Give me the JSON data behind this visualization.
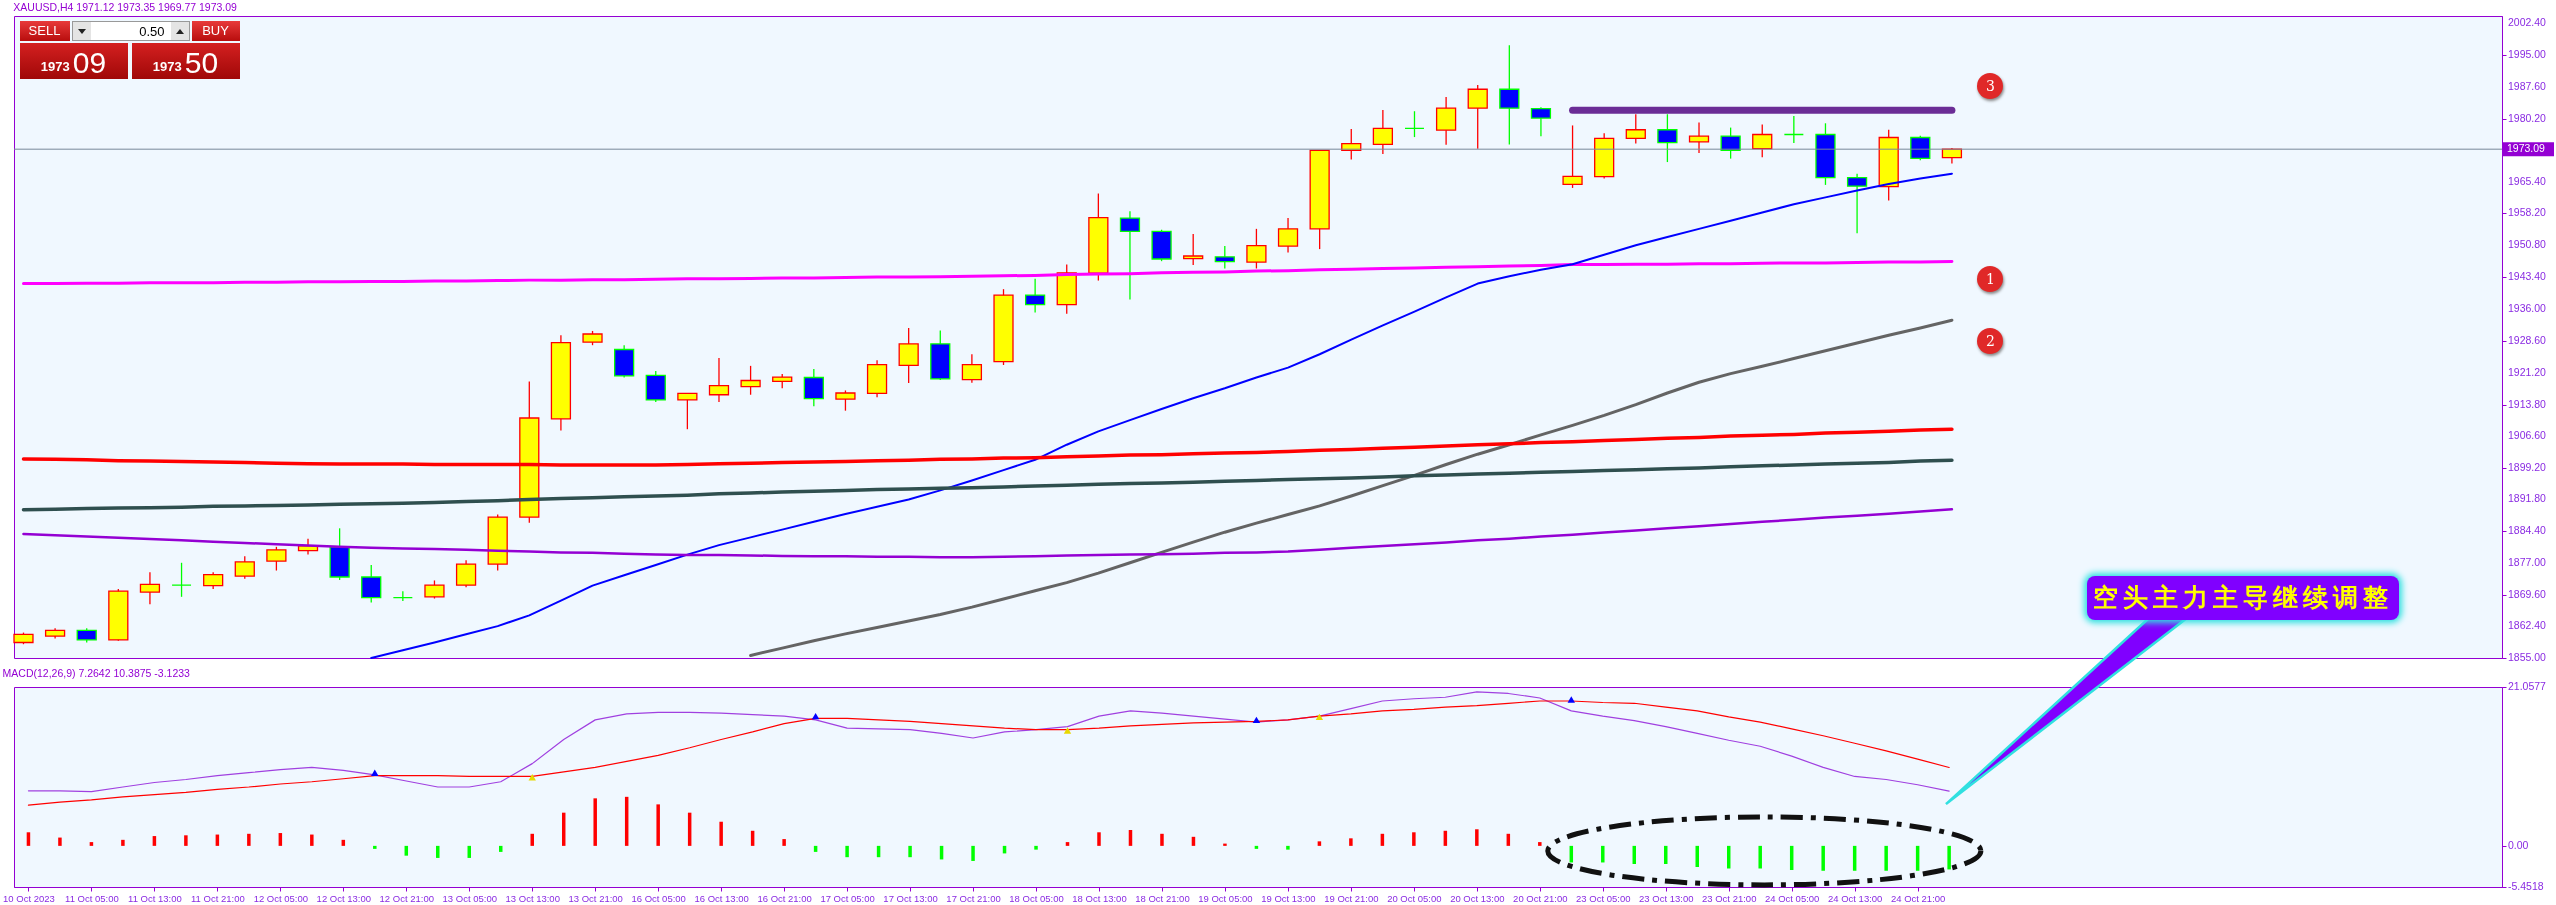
{
  "chart_data": [
    {
      "type": "candlestick",
      "title": "XAUUSD,H4  1971.12 1973.35 1969.77 1973.09",
      "categories": [
        null,
        null,
        null,
        null,
        null,
        null,
        null,
        null,
        null,
        null,
        null,
        null,
        null,
        null,
        null,
        null,
        null,
        null,
        null,
        null,
        null,
        null,
        null,
        null,
        null,
        null,
        null,
        null,
        null,
        null,
        null,
        null,
        null,
        null,
        null,
        null,
        null,
        null,
        null,
        null,
        null,
        null,
        null,
        null,
        null,
        null,
        null,
        null,
        null,
        null,
        null,
        null,
        null,
        null,
        null,
        null,
        null,
        null,
        null,
        null,
        null,
        null
      ],
      "ohlc": [
        [
          1858.6,
          1860.9,
          1858.2,
          1860.5
        ],
        [
          1860.1,
          1861.9,
          1859.5,
          1861.4
        ],
        [
          1861.4,
          1861.9,
          1858.6,
          1859.2
        ],
        [
          1859.2,
          1871.0,
          1859.0,
          1870.5
        ],
        [
          1870.3,
          1874.9,
          1867.5,
          1872.1
        ],
        [
          1871.9,
          1877.1,
          1869.2,
          1871.9
        ],
        [
          1871.8,
          1874.9,
          1871.0,
          1874.35
        ],
        [
          1874.0,
          1878.6,
          1873.4,
          1877.3
        ],
        [
          1877.5,
          1880.8,
          1875.3,
          1880.1
        ],
        [
          1879.9,
          1882.7,
          1879.0,
          1881.0
        ],
        [
          1880.8,
          1885.1,
          1873.1,
          1873.8
        ],
        [
          1873.8,
          1876.6,
          1867.9,
          1869.0
        ],
        [
          1869.0,
          1870.5,
          1868.2,
          1869.0
        ],
        [
          1869.2,
          1873.0,
          1868.8,
          1871.9
        ],
        [
          1871.9,
          1877.7,
          1871.4,
          1876.8
        ],
        [
          1876.8,
          1888.3,
          1875.3,
          1887.7
        ],
        [
          1887.7,
          1919.2,
          1886.4,
          1910.7
        ],
        [
          1910.5,
          1929.9,
          1907.8,
          1928.2
        ],
        [
          1928.3,
          1930.9,
          1927.6,
          1930.2
        ],
        [
          1926.6,
          1927.6,
          1920.1,
          1920.5
        ],
        [
          1920.6,
          1921.6,
          1914.4,
          1914.9
        ],
        [
          1914.9,
          1916.5,
          1908.1,
          1916.4
        ],
        [
          1916.1,
          1924.6,
          1914.4,
          1918.2
        ],
        [
          1918.0,
          1922.8,
          1916.1,
          1919.4
        ],
        [
          1919.2,
          1920.9,
          1917.6,
          1920.2
        ],
        [
          1920.1,
          1922.1,
          1913.4,
          1915.2
        ],
        [
          1915.1,
          1917.1,
          1912.4,
          1916.5
        ],
        [
          1916.4,
          1924.1,
          1915.5,
          1923.1
        ],
        [
          1922.9,
          1931.6,
          1918.8,
          1927.9
        ],
        [
          1927.9,
          1931.0,
          1919.5,
          1919.8
        ],
        [
          1919.6,
          1925.5,
          1918.9,
          1923.1
        ],
        [
          1923.8,
          1940.6,
          1923.0,
          1939.2
        ],
        [
          1939.2,
          1943.0,
          1935.2,
          1937.0
        ],
        [
          1937.0,
          1946.3,
          1934.9,
          1944.4
        ],
        [
          1944.3,
          1962.8,
          1942.6,
          1957.2
        ],
        [
          1957.1,
          1958.7,
          1938.2,
          1954.0
        ],
        [
          1954.0,
          1954.4,
          1947.1,
          1947.6
        ],
        [
          1947.7,
          1953.4,
          1946.2,
          1948.3
        ],
        [
          1948.1,
          1950.6,
          1945.4,
          1947.0
        ],
        [
          1946.9,
          1954.6,
          1945.4,
          1950.7
        ],
        [
          1950.6,
          1957.1,
          1949.1,
          1954.6
        ],
        [
          1954.6,
          1972.9,
          1949.9,
          1972.8
        ],
        [
          1972.8,
          1977.8,
          1970.7,
          1974.4
        ],
        [
          1974.2,
          1982.2,
          1972.0,
          1977.9
        ],
        [
          1977.9,
          1981.9,
          1975.9,
          1977.9
        ],
        [
          1977.5,
          1985.2,
          1974.1,
          1982.6
        ],
        [
          1982.6,
          1988.0,
          1973.2,
          1987.0
        ],
        [
          1987.0,
          1997.2,
          1974.2,
          1982.6
        ],
        [
          1982.5,
          1982.8,
          1976.1,
          1980.3
        ],
        [
          1964.9,
          1978.6,
          1964.1,
          1966.8
        ],
        [
          1966.7,
          1976.8,
          1966.3,
          1975.6
        ],
        [
          1975.6,
          1981.2,
          1974.4,
          1977.6
        ],
        [
          1977.6,
          1981.2,
          1970.1,
          1974.6
        ],
        [
          1974.8,
          1979.3,
          1972.2,
          1976.1
        ],
        [
          1976.1,
          1978.1,
          1970.9,
          1972.8
        ],
        [
          1973.2,
          1978.8,
          1971.2,
          1976.5
        ],
        [
          1976.5,
          1980.8,
          1974.5,
          1976.5
        ],
        [
          1976.5,
          1979.1,
          1964.8,
          1966.5
        ],
        [
          1966.5,
          1967.4,
          1953.6,
          1964.5
        ],
        [
          1964.4,
          1977.6,
          1961.2,
          1975.8
        ],
        [
          1975.8,
          1976.2,
          1970.5,
          1970.95
        ],
        [
          1971.12,
          1973.35,
          1969.77,
          1973.09
        ]
      ],
      "series": [
        {
          "type": "line",
          "color": "#ff00ff",
          "values": [
            1941.9,
            1941.9,
            1942.0,
            1942.0,
            1942.1,
            1942.1,
            1942.1,
            1942.2,
            1942.2,
            1942.3,
            1942.3,
            1942.4,
            1942.4,
            1942.5,
            1942.5,
            1942.6,
            1942.7,
            1942.7,
            1942.8,
            1942.8,
            1942.9,
            1943.0,
            1943.0,
            1943.1,
            1943.2,
            1943.2,
            1943.3,
            1943.4,
            1943.4,
            1943.5,
            1943.6,
            1943.7,
            1943.8,
            1944.0,
            1944.1,
            1944.2,
            1944.4,
            1944.5,
            1944.6,
            1944.8,
            1944.9,
            1945.1,
            1945.2,
            1945.4,
            1945.5,
            1945.7,
            1945.8,
            1946.0,
            1946.1,
            1946.3,
            1946.3,
            1946.4,
            1946.4,
            1946.5,
            1946.5,
            1946.6,
            1946.7,
            1946.7,
            1946.8,
            1946.9,
            1946.9,
            1947.0
          ]
        },
        {
          "type": "line",
          "color": "#0000ff",
          "values": [
            null,
            null,
            null,
            null,
            null,
            null,
            null,
            null,
            null,
            null,
            null,
            1855.0,
            1856.8,
            1858.6,
            1860.5,
            1862.4,
            1864.9,
            1868.3,
            1871.8,
            1874.2,
            1876.6,
            1879.0,
            1881.2,
            1883.0,
            1884.8,
            1886.6,
            1888.4,
            1890.1,
            1891.8,
            1893.9,
            1896.2,
            1898.6,
            1901.0,
            1904.5,
            1907.6,
            1910.2,
            1912.8,
            1915.3,
            1917.6,
            1920.1,
            1922.4,
            1925.5,
            1928.9,
            1932.2,
            1935.4,
            1938.7,
            1941.9,
            1943.6,
            1945.1,
            1946.4,
            1948.6,
            1950.8,
            1952.7,
            1954.6,
            1956.5,
            1958.4,
            1960.3,
            1961.9,
            1963.5,
            1965.0,
            1966.3,
            1967.4
          ]
        },
        {
          "type": "line",
          "color": "#646464",
          "values": [
            null,
            null,
            null,
            null,
            null,
            null,
            null,
            null,
            null,
            null,
            null,
            null,
            null,
            null,
            null,
            null,
            null,
            null,
            null,
            null,
            null,
            null,
            null,
            1855.6,
            1857.3,
            1859.0,
            1860.6,
            1862.1,
            1863.6,
            1865.1,
            1866.8,
            1868.7,
            1870.6,
            1872.5,
            1874.7,
            1877.1,
            1879.5,
            1881.9,
            1884.2,
            1886.3,
            1888.3,
            1890.3,
            1892.6,
            1895.0,
            1897.4,
            1899.9,
            1902.3,
            1904.5,
            1906.8,
            1909.0,
            1911.3,
            1913.8,
            1916.5,
            1919.0,
            1921.0,
            1922.7,
            1924.5,
            1926.3,
            1928.1,
            1929.9,
            1931.6,
            1933.4
          ]
        },
        {
          "type": "line",
          "color": "#ff0000",
          "values": [
            1901.2,
            1901.1,
            1901.0,
            1900.8,
            1900.7,
            1900.6,
            1900.5,
            1900.4,
            1900.2,
            1900.1,
            1900.0,
            1900.0,
            1900.0,
            1899.9,
            1899.9,
            1899.9,
            1899.9,
            1899.8,
            1899.8,
            1899.8,
            1899.8,
            1899.9,
            1900.1,
            1900.2,
            1900.4,
            1900.5,
            1900.6,
            1900.8,
            1900.9,
            1901.1,
            1901.2,
            1901.4,
            1901.5,
            1901.7,
            1901.9,
            1902.1,
            1902.2,
            1902.4,
            1902.6,
            1902.7,
            1902.9,
            1903.2,
            1903.4,
            1903.7,
            1903.9,
            1904.2,
            1904.5,
            1904.7,
            1905.0,
            1905.2,
            1905.5,
            1905.7,
            1906.0,
            1906.2,
            1906.5,
            1906.7,
            1906.9,
            1907.2,
            1907.4,
            1907.6,
            1907.9,
            1908.1
          ]
        },
        {
          "type": "line",
          "color": "#2f4f4f",
          "values": [
            1889.4,
            1889.5,
            1889.7,
            1889.8,
            1889.9,
            1890.0,
            1890.2,
            1890.3,
            1890.4,
            1890.5,
            1890.7,
            1890.8,
            1890.9,
            1891.1,
            1891.3,
            1891.5,
            1891.8,
            1892.0,
            1892.2,
            1892.4,
            1892.6,
            1892.8,
            1893.1,
            1893.3,
            1893.5,
            1893.7,
            1893.9,
            1894.1,
            1894.2,
            1894.4,
            1894.5,
            1894.7,
            1894.9,
            1895.1,
            1895.3,
            1895.5,
            1895.6,
            1895.8,
            1896.0,
            1896.2,
            1896.4,
            1896.6,
            1896.8,
            1897.0,
            1897.3,
            1897.5,
            1897.7,
            1897.9,
            1898.1,
            1898.3,
            1898.5,
            1898.7,
            1898.9,
            1899.1,
            1899.4,
            1899.6,
            1899.8,
            1900.0,
            1900.2,
            1900.4,
            1900.7,
            1900.9
          ]
        },
        {
          "type": "line",
          "color": "#9400d3",
          "values": [
            1883.8,
            1883.5,
            1883.2,
            1882.9,
            1882.6,
            1882.3,
            1882.0,
            1881.7,
            1881.4,
            1881.1,
            1880.8,
            1880.6,
            1880.4,
            1880.3,
            1880.1,
            1879.9,
            1879.7,
            1879.5,
            1879.4,
            1879.2,
            1879.0,
            1878.9,
            1878.9,
            1878.8,
            1878.7,
            1878.6,
            1878.6,
            1878.5,
            1878.5,
            1878.4,
            1878.4,
            1878.5,
            1878.6,
            1878.8,
            1878.9,
            1879.0,
            1879.1,
            1879.2,
            1879.4,
            1879.5,
            1879.7,
            1880.1,
            1880.6,
            1881.0,
            1881.4,
            1881.8,
            1882.3,
            1882.7,
            1883.2,
            1883.6,
            1884.1,
            1884.6,
            1885.1,
            1885.6,
            1886.1,
            1886.6,
            1887.1,
            1887.6,
            1888.0,
            1888.5,
            1889.0,
            1889.5
          ]
        },
        {
          "type": "line",
          "color": "#6b2d96",
          "values": [
            null,
            null,
            null,
            null,
            null,
            null,
            null,
            null,
            null,
            null,
            null,
            null,
            null,
            null,
            null,
            null,
            null,
            null,
            null,
            null,
            null,
            null,
            null,
            null,
            null,
            null,
            null,
            null,
            null,
            null,
            null,
            null,
            null,
            null,
            null,
            null,
            null,
            null,
            null,
            null,
            null,
            null,
            null,
            null,
            null,
            null,
            null,
            null,
            null,
            1982.1,
            1982.1,
            1982.1,
            1982.1,
            1982.1,
            1982.1,
            1982.1,
            1982.1,
            1982.1,
            1982.1,
            1982.1,
            1982.1,
            1982.1
          ]
        }
      ],
      "ylim": [
        1855,
        2004
      ],
      "yticks": [
        {
          "value": 2002.4,
          "label": "2002.40"
        },
        {
          "value": 1995,
          "label": "1995.00"
        },
        {
          "value": 1987.6,
          "label": "1987.60"
        },
        {
          "value": 1980.2,
          "label": "1980.20"
        },
        {
          "value": 1965.4,
          "label": "1965.40"
        },
        {
          "value": 1958.2,
          "label": "1958.20"
        },
        {
          "value": 1950.8,
          "label": "1950.80"
        },
        {
          "value": 1943.4,
          "label": "1943.40"
        },
        {
          "value": 1936,
          "label": "1936.00"
        },
        {
          "value": 1928.6,
          "label": "1928.60"
        },
        {
          "value": 1921.2,
          "label": "1921.20"
        },
        {
          "value": 1913.8,
          "label": "1913.80"
        },
        {
          "value": 1906.6,
          "label": "1906.60"
        },
        {
          "value": 1899.2,
          "label": "1899.20"
        },
        {
          "value": 1891.8,
          "label": "1891.80"
        },
        {
          "value": 1884.4,
          "label": "1884.40"
        },
        {
          "value": 1877,
          "label": "1877.00"
        },
        {
          "value": 1869.6,
          "label": "1869.60"
        },
        {
          "value": 1862.4,
          "label": "1862.40"
        },
        {
          "value": 1855,
          "label": "1855.00"
        }
      ],
      "ref_lines": [
        {
          "axis": "y",
          "value": 1973.09,
          "label": "1973.09",
          "color": "#778899"
        }
      ],
      "annotations": [
        "SELL",
        "0.50",
        "BUY",
        "1973",
        "09",
        "1973",
        "50",
        "1",
        "2",
        "3"
      ],
      "tick_labels": "y"
    },
    {
      "type": "bar",
      "title": "MACD(12,26,9) 7.2642 10.3875 -3.1233",
      "categories": [
        "10 Oct 2023",
        null,
        "11 Oct 05:00",
        null,
        "11 Oct 13:00",
        null,
        "11 Oct 21:00",
        null,
        "12 Oct 05:00",
        null,
        "12 Oct 13:00",
        null,
        "12 Oct 21:00",
        null,
        "13 Oct 05:00",
        null,
        "13 Oct 13:00",
        null,
        "13 Oct 21:00",
        null,
        "16 Oct 05:00",
        null,
        "16 Oct 13:00",
        null,
        "16 Oct 21:00",
        null,
        "17 Oct 05:00",
        null,
        "17 Oct 13:00",
        null,
        "17 Oct 21:00",
        null,
        "18 Oct 05:00",
        null,
        "18 Oct 13:00",
        null,
        "18 Oct 21:00",
        null,
        "19 Oct 05:00",
        null,
        "19 Oct 13:00",
        null,
        "19 Oct 21:00",
        null,
        "20 Oct 05:00",
        null,
        "20 Oct 13:00",
        null,
        "20 Oct 21:00",
        null,
        "23 Oct 05:00",
        null,
        "23 Oct 13:00",
        null,
        "23 Oct 21:00",
        null,
        "24 Oct 05:00",
        null,
        "24 Oct 13:00",
        null,
        "24 Oct 21:00",
        null
      ],
      "series": [
        {
          "type": "bar",
          "values": [
            1.8,
            1.1,
            0.5,
            0.8,
            1.3,
            1.4,
            1.5,
            1.6,
            1.7,
            1.5,
            0.8,
            -0.4,
            -1.3,
            -1.6,
            -1.6,
            -0.8,
            1.6,
            4.4,
            6.3,
            6.5,
            5.5,
            4.4,
            3.2,
            2.0,
            0.9,
            -0.8,
            -1.5,
            -1.5,
            -1.5,
            -1.8,
            -2.0,
            -1.0,
            -0.5,
            0.5,
            1.8,
            2.1,
            1.6,
            1.2,
            0.3,
            -0.4,
            -0.5,
            0.6,
            1.0,
            1.6,
            1.8,
            2.0,
            2.2,
            1.6,
            0.5,
            -2.2,
            -2.2,
            -2.4,
            -2.4,
            -2.8,
            -3.0,
            -3.0,
            -3.2,
            -3.3,
            -3.3,
            -3.3,
            -3.3,
            -3.1233
          ],
          "colors": [
            "#ff0000",
            "#ff0000",
            "#ff0000",
            "#ff0000",
            "#ff0000",
            "#ff0000",
            "#ff0000",
            "#ff0000",
            "#ff0000",
            "#ff0000",
            "#ff0000",
            "#00ff00",
            "#00ff00",
            "#00ff00",
            "#00ff00",
            "#00ff00",
            "#ff0000",
            "#ff0000",
            "#ff0000",
            "#ff0000",
            "#ff0000",
            "#ff0000",
            "#ff0000",
            "#ff0000",
            "#ff0000",
            "#00ff00",
            "#00ff00",
            "#00ff00",
            "#00ff00",
            "#00ff00",
            "#00ff00",
            "#00ff00",
            "#00ff00",
            "#ff0000",
            "#ff0000",
            "#ff0000",
            "#ff0000",
            "#ff0000",
            "#ff0000",
            "#00ff00",
            "#00ff00",
            "#ff0000",
            "#ff0000",
            "#ff0000",
            "#ff0000",
            "#ff0000",
            "#ff0000",
            "#ff0000",
            "#ff0000",
            "#00ff00",
            "#00ff00",
            "#00ff00",
            "#00ff00",
            "#00ff00",
            "#00ff00",
            "#00ff00",
            "#00ff00",
            "#00ff00",
            "#00ff00",
            "#00ff00",
            "#00ff00",
            "#00ff00"
          ]
        },
        {
          "type": "line",
          "color": "#a040e0",
          "values": [
            7.3,
            7.3,
            7.2,
            7.8,
            8.4,
            8.8,
            9.3,
            9.7,
            10.1,
            10.4,
            10.0,
            9.4,
            8.6,
            7.8,
            7.8,
            8.5,
            10.9,
            14.1,
            16.7,
            17.5,
            17.7,
            17.7,
            17.6,
            17.4,
            17.2,
            16.7,
            15.6,
            15.5,
            15.4,
            14.9,
            14.3,
            15.1,
            15.4,
            15.8,
            17.2,
            17.9,
            17.6,
            17.2,
            16.8,
            16.4,
            16.7,
            17.2,
            18.2,
            19.2,
            19.5,
            19.7,
            20.4,
            20.2,
            19.6,
            17.9,
            17.2,
            16.6,
            15.8,
            14.9,
            14.0,
            13.2,
            11.9,
            10.4,
            9.2,
            8.8,
            8.1,
            7.2642
          ]
        },
        {
          "type": "line",
          "color": "#ff0000",
          "values": [
            5.4,
            5.8,
            6.1,
            6.5,
            6.8,
            7.1,
            7.5,
            7.8,
            8.2,
            8.5,
            8.9,
            9.3,
            9.3,
            9.3,
            9.2,
            9.2,
            9.2,
            9.8,
            10.4,
            11.2,
            12.0,
            13.0,
            14.1,
            15.1,
            16.2,
            16.9,
            16.9,
            16.7,
            16.5,
            16.2,
            15.9,
            15.6,
            15.4,
            15.4,
            15.6,
            15.9,
            16.1,
            16.3,
            16.4,
            16.5,
            16.7,
            17.2,
            17.5,
            17.9,
            18.1,
            18.4,
            18.6,
            18.9,
            19.2,
            19.2,
            19.0,
            18.9,
            18.4,
            17.9,
            17.1,
            16.4,
            15.5,
            14.6,
            13.6,
            12.6,
            11.5,
            10.3875
          ]
        },
        {
          "type": "scatter",
          "color": "#0000ff",
          "marker": "triangle",
          "values": [
            null,
            null,
            null,
            null,
            null,
            null,
            null,
            null,
            null,
            null,
            null,
            9.7,
            null,
            null,
            null,
            null,
            null,
            null,
            null,
            null,
            null,
            null,
            null,
            null,
            null,
            17.2,
            null,
            null,
            null,
            null,
            null,
            null,
            null,
            null,
            null,
            null,
            null,
            null,
            null,
            16.7,
            null,
            null,
            null,
            null,
            null,
            null,
            null,
            null,
            null,
            19.4,
            null,
            null,
            null,
            null,
            null,
            null,
            null,
            null,
            null,
            null,
            null,
            null
          ]
        },
        {
          "type": "scatter",
          "color": "#e8d800",
          "marker": "triangle",
          "values": [
            null,
            null,
            null,
            null,
            null,
            null,
            null,
            null,
            null,
            null,
            null,
            null,
            null,
            null,
            null,
            null,
            9.1,
            null,
            null,
            null,
            null,
            null,
            null,
            null,
            null,
            null,
            null,
            null,
            null,
            null,
            null,
            null,
            null,
            15.3,
            null,
            null,
            null,
            null,
            null,
            null,
            null,
            17.1,
            null,
            null,
            null,
            null,
            null,
            null,
            null,
            null,
            null,
            null,
            null,
            null,
            null,
            null,
            null,
            null,
            null,
            null,
            null,
            null
          ]
        }
      ],
      "ylim": [
        -5.4518,
        21.0577
      ],
      "yticks": [
        21.0577,
        {
          "value": 0,
          "label": "0.00"
        },
        -5.4518
      ],
      "annotations": [
        "空头主力主导继续调整"
      ]
    }
  ]
}
